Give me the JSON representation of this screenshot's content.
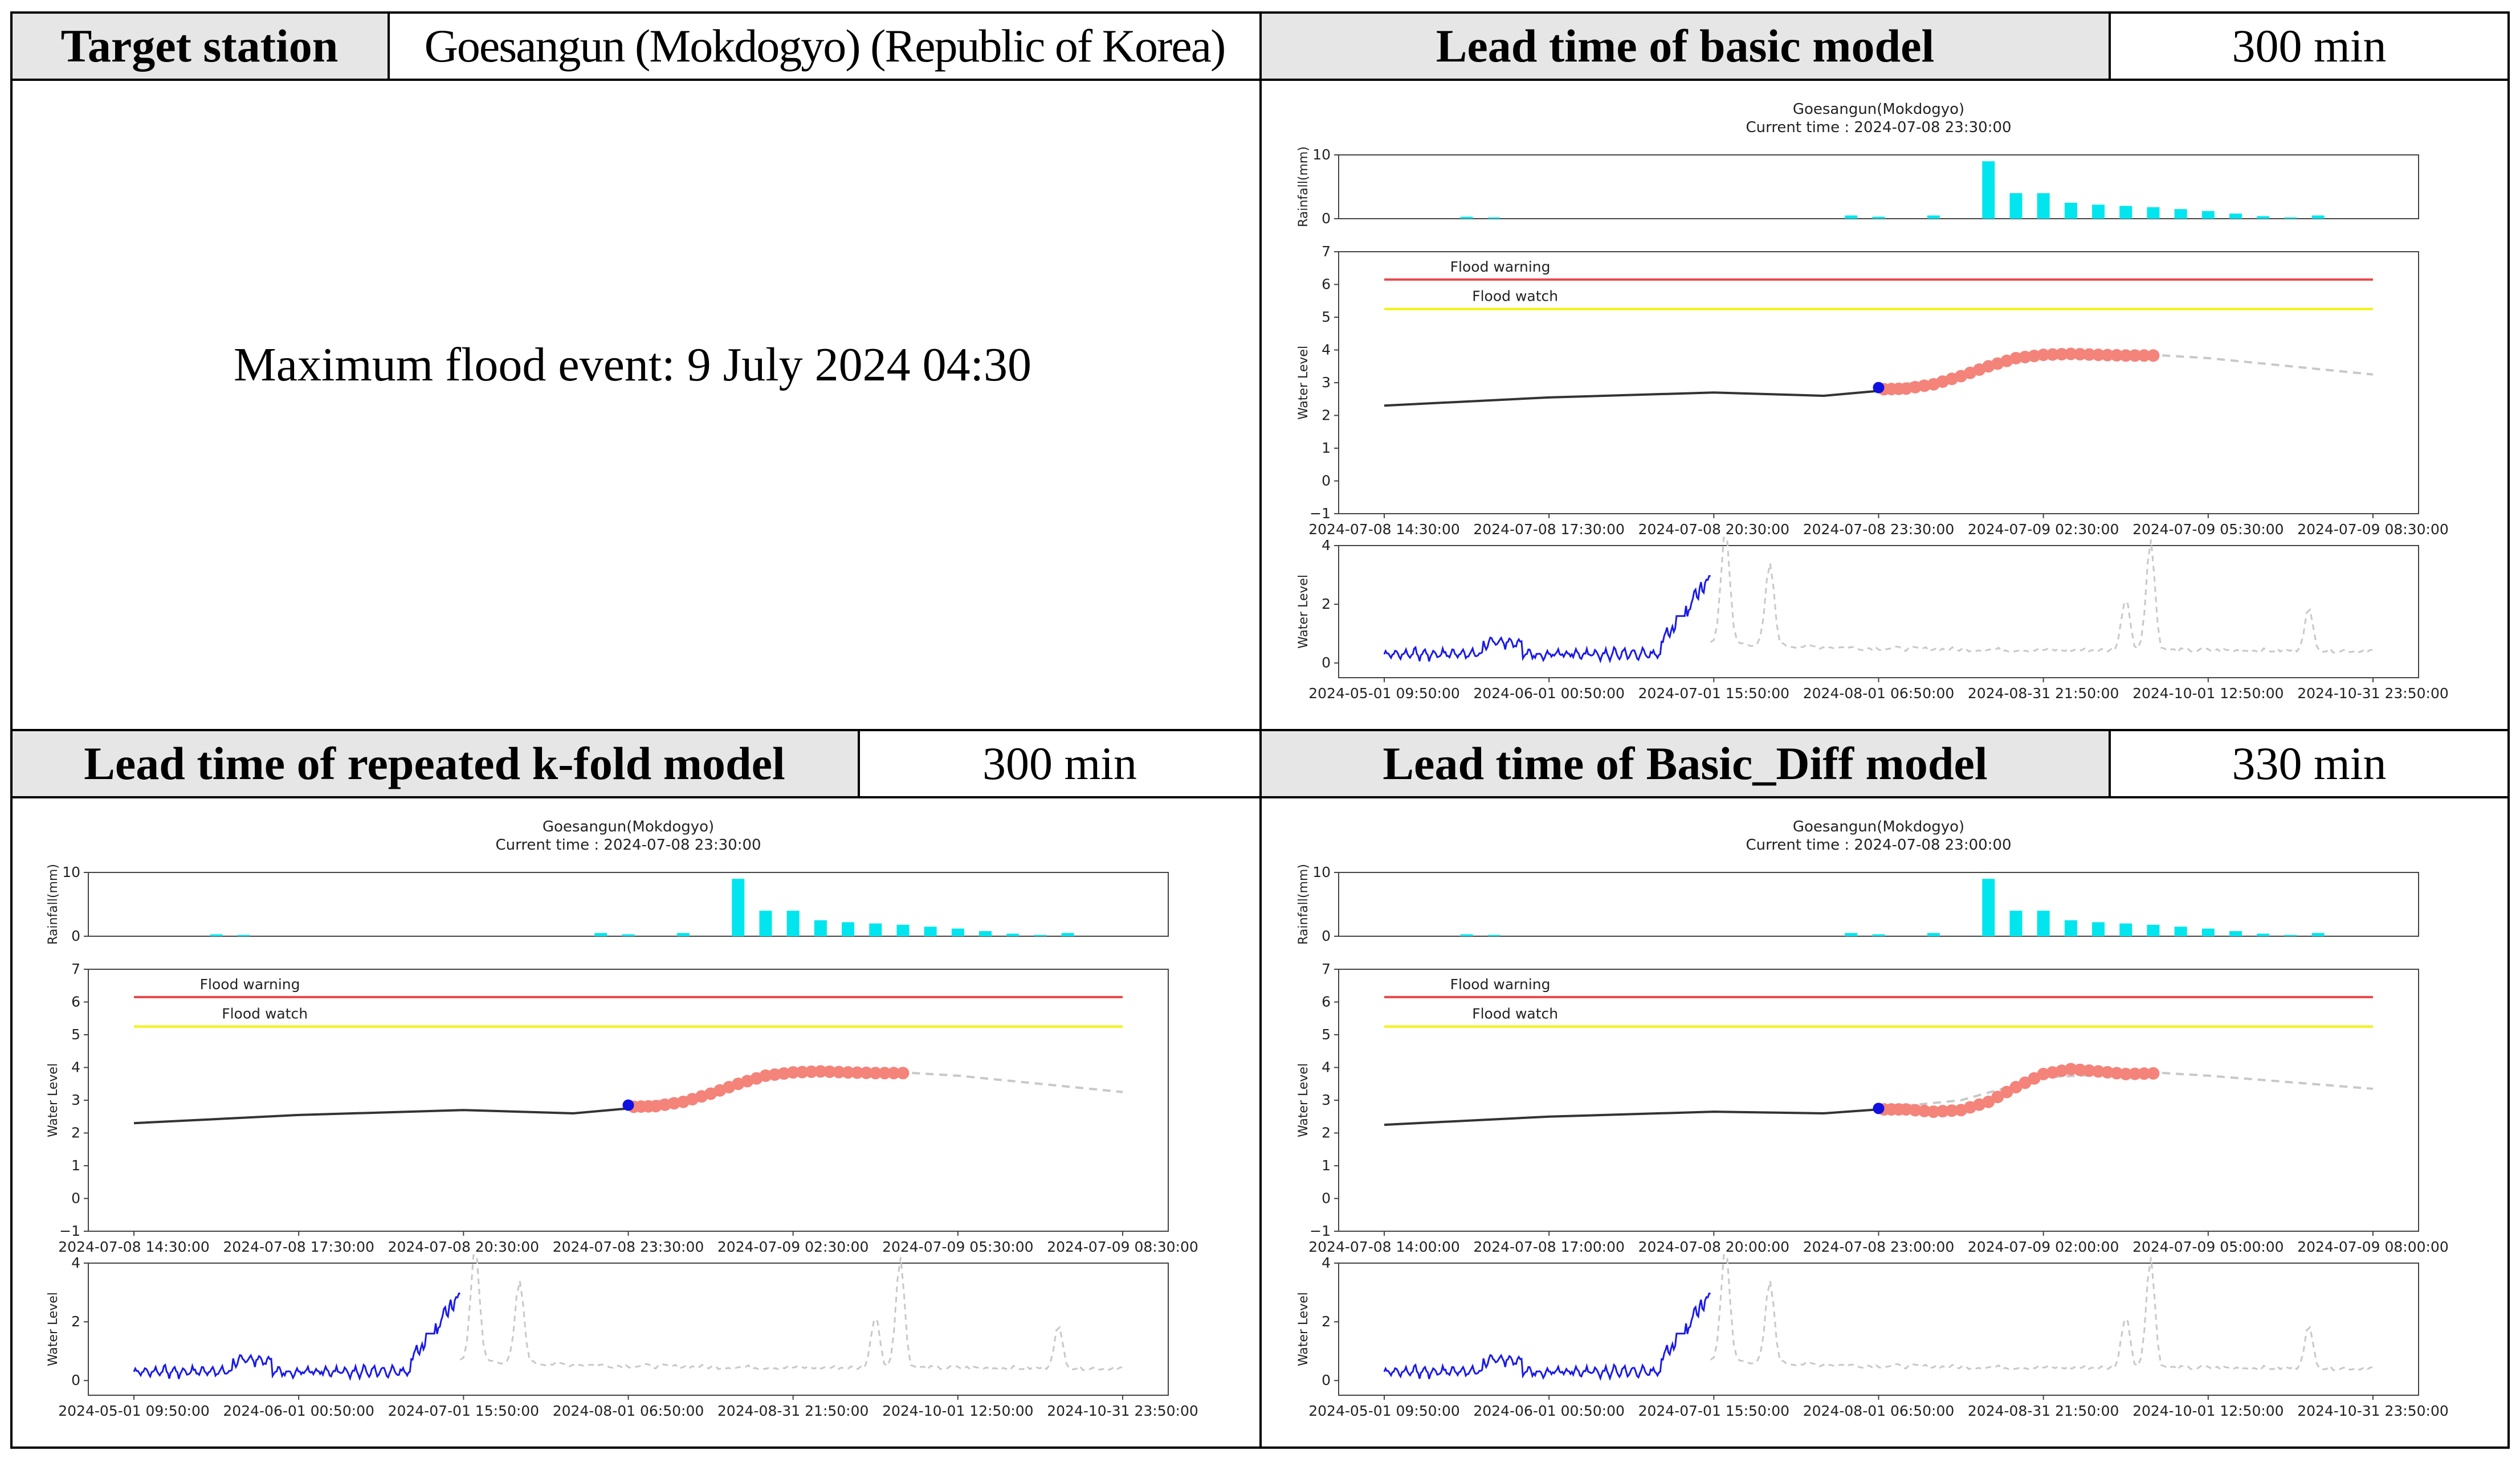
{
  "header": {
    "target_station_label": "Target station",
    "target_station_value": "Goesangun (Mokdogyo) (Republic of Korea)",
    "basic_label": "Lead time of basic model",
    "basic_value": "300 min",
    "kfold_label": "Lead time of repeated k-fold model",
    "kfold_value": "300 min",
    "diff_label": "Lead time of Basic_Diff model",
    "diff_value": "330 min"
  },
  "event": {
    "text": "Maximum flood event: 9 July 2024 04:30"
  },
  "colors": {
    "rain": "#00e5ee",
    "warning": "#e8474a",
    "watch": "#f2f20a",
    "observed": "#333333",
    "forecast": "#f4837a",
    "current": "#1010e0",
    "history": "#1a1ae6",
    "dashed": "#c8c8c8",
    "header_bg": "#e6e6e6"
  },
  "chart_data": [
    {
      "id": "basic",
      "type": "line",
      "station": "Goesangun(Mokdogyo)",
      "current_time": "Current time : 2024-07-08 23:30:00",
      "rainfall": {
        "ylabel": "Rainfall(mm)",
        "ylim": [
          0,
          10
        ],
        "yticks": [
          "0",
          "10"
        ],
        "x": [
          3,
          4,
          17,
          18,
          20,
          22,
          23,
          24,
          25,
          26,
          27,
          28,
          29,
          30,
          31,
          32,
          33,
          34
        ],
        "values": [
          0.3,
          0.2,
          0.5,
          0.3,
          0.5,
          9.0,
          4.0,
          4.0,
          2.5,
          2.2,
          2.0,
          1.8,
          1.5,
          1.2,
          0.8,
          0.4,
          0.2,
          0.5
        ]
      },
      "water_level": {
        "ylabel": "Water Level",
        "ylim": [
          -1,
          7
        ],
        "yticks": [
          "−1",
          "0",
          "1",
          "2",
          "3",
          "4",
          "5",
          "6",
          "7"
        ],
        "xticks": [
          "2024-07-08 14:30:00",
          "2024-07-08 17:30:00",
          "2024-07-08 20:30:00",
          "2024-07-08 23:30:00",
          "2024-07-09 02:30:00",
          "2024-07-09 05:30:00",
          "2024-07-09 08:30:00"
        ],
        "flood_warning": 6.15,
        "flood_watch": 5.25,
        "warning_label": "Flood warning",
        "watch_label": "Flood watch",
        "observed": [
          [
            0,
            2.3
          ],
          [
            6,
            2.55
          ],
          [
            12,
            2.7
          ],
          [
            16,
            2.6
          ],
          [
            18,
            2.75
          ],
          [
            18,
            2.85
          ]
        ],
        "current": [
          18,
          2.85
        ],
        "forecast": [
          [
            18.2,
            2.8
          ],
          [
            19,
            2.82
          ],
          [
            20,
            2.95
          ],
          [
            21,
            3.2
          ],
          [
            22,
            3.5
          ],
          [
            23,
            3.75
          ],
          [
            24,
            3.85
          ],
          [
            25,
            3.88
          ],
          [
            26,
            3.85
          ],
          [
            27,
            3.83
          ],
          [
            28,
            3.83
          ]
        ],
        "observed_future": [
          [
            18,
            2.85
          ],
          [
            21,
            3.2
          ],
          [
            24,
            3.85
          ],
          [
            28,
            3.85
          ],
          [
            30,
            3.75
          ],
          [
            36,
            3.25
          ]
        ]
      },
      "history": {
        "ylabel": "Water Level",
        "ylim": [
          -0.5,
          4
        ],
        "yticks": [
          "0",
          "2",
          "4"
        ],
        "xticks": [
          "2024-05-01 09:50:00",
          "2024-06-01 00:50:00",
          "2024-07-01 15:50:00",
          "2024-08-01 06:50:00",
          "2024-08-31 21:50:00",
          "2024-10-01 12:50:00",
          "2024-10-31 23:50:00"
        ]
      }
    },
    {
      "id": "kfold",
      "type": "line",
      "station": "Goesangun(Mokdogyo)",
      "current_time": "Current time : 2024-07-08 23:30:00",
      "rainfall": {
        "ylabel": "Rainfall(mm)",
        "ylim": [
          0,
          10
        ],
        "yticks": [
          "0",
          "10"
        ],
        "x": [
          3,
          4,
          17,
          18,
          20,
          22,
          23,
          24,
          25,
          26,
          27,
          28,
          29,
          30,
          31,
          32,
          33,
          34
        ],
        "values": [
          0.3,
          0.2,
          0.5,
          0.3,
          0.5,
          9.0,
          4.0,
          4.0,
          2.5,
          2.2,
          2.0,
          1.8,
          1.5,
          1.2,
          0.8,
          0.4,
          0.2,
          0.5
        ]
      },
      "water_level": {
        "ylabel": "Water Level",
        "ylim": [
          -1,
          7
        ],
        "yticks": [
          "−1",
          "0",
          "1",
          "2",
          "3",
          "4",
          "5",
          "6",
          "7"
        ],
        "xticks": [
          "2024-07-08 14:30:00",
          "2024-07-08 17:30:00",
          "2024-07-08 20:30:00",
          "2024-07-08 23:30:00",
          "2024-07-09 02:30:00",
          "2024-07-09 05:30:00",
          "2024-07-09 08:30:00"
        ],
        "flood_warning": 6.15,
        "flood_watch": 5.25,
        "warning_label": "Flood warning",
        "watch_label": "Flood watch",
        "observed": [
          [
            0,
            2.3
          ],
          [
            6,
            2.55
          ],
          [
            12,
            2.7
          ],
          [
            16,
            2.6
          ],
          [
            18,
            2.75
          ],
          [
            18,
            2.85
          ]
        ],
        "current": [
          18,
          2.85
        ],
        "forecast": [
          [
            18.2,
            2.8
          ],
          [
            19,
            2.82
          ],
          [
            20,
            2.95
          ],
          [
            21,
            3.2
          ],
          [
            22,
            3.5
          ],
          [
            23,
            3.75
          ],
          [
            24,
            3.85
          ],
          [
            25,
            3.88
          ],
          [
            26,
            3.85
          ],
          [
            27,
            3.83
          ],
          [
            28,
            3.83
          ]
        ],
        "observed_future": [
          [
            18,
            2.85
          ],
          [
            21,
            3.2
          ],
          [
            24,
            3.85
          ],
          [
            28,
            3.85
          ],
          [
            30,
            3.75
          ],
          [
            36,
            3.25
          ]
        ]
      },
      "history": {
        "ylabel": "Water Level",
        "ylim": [
          -0.5,
          4
        ],
        "yticks": [
          "0",
          "2",
          "4"
        ],
        "xticks": [
          "2024-05-01 09:50:00",
          "2024-06-01 00:50:00",
          "2024-07-01 15:50:00",
          "2024-08-01 06:50:00",
          "2024-08-31 21:50:00",
          "2024-10-01 12:50:00",
          "2024-10-31 23:50:00"
        ]
      }
    },
    {
      "id": "diff",
      "type": "line",
      "station": "Goesangun(Mokdogyo)",
      "current_time": "Current time : 2024-07-08 23:00:00",
      "rainfall": {
        "ylabel": "Rainfall(mm)",
        "ylim": [
          0,
          10
        ],
        "yticks": [
          "0",
          "10"
        ],
        "x": [
          3,
          4,
          17,
          18,
          20,
          22,
          23,
          24,
          25,
          26,
          27,
          28,
          29,
          30,
          31,
          32,
          33,
          34
        ],
        "values": [
          0.3,
          0.2,
          0.5,
          0.3,
          0.5,
          9.0,
          4.0,
          4.0,
          2.5,
          2.2,
          2.0,
          1.8,
          1.5,
          1.2,
          0.8,
          0.4,
          0.2,
          0.5
        ]
      },
      "water_level": {
        "ylabel": "Water Level",
        "ylim": [
          -1,
          7
        ],
        "yticks": [
          "−1",
          "0",
          "1",
          "2",
          "3",
          "4",
          "5",
          "6",
          "7"
        ],
        "xticks": [
          "2024-07-08 14:00:00",
          "2024-07-08 17:00:00",
          "2024-07-08 20:00:00",
          "2024-07-08 23:00:00",
          "2024-07-09 02:00:00",
          "2024-07-09 05:00:00",
          "2024-07-09 08:00:00"
        ],
        "flood_warning": 6.15,
        "flood_watch": 5.25,
        "warning_label": "Flood warning",
        "watch_label": "Flood watch",
        "observed": [
          [
            0,
            2.25
          ],
          [
            6,
            2.5
          ],
          [
            12,
            2.65
          ],
          [
            16,
            2.6
          ],
          [
            18,
            2.72
          ],
          [
            18,
            2.75
          ]
        ],
        "current": [
          18,
          2.75
        ],
        "forecast": [
          [
            18.2,
            2.72
          ],
          [
            19,
            2.72
          ],
          [
            20,
            2.65
          ],
          [
            21,
            2.7
          ],
          [
            22,
            2.95
          ],
          [
            23,
            3.4
          ],
          [
            24,
            3.8
          ],
          [
            25,
            3.95
          ],
          [
            26,
            3.88
          ],
          [
            27,
            3.8
          ],
          [
            28,
            3.82
          ]
        ],
        "observed_future": [
          [
            18,
            2.75
          ],
          [
            21,
            3.0
          ],
          [
            24,
            3.7
          ],
          [
            28,
            3.85
          ],
          [
            30,
            3.75
          ],
          [
            36,
            3.35
          ]
        ]
      },
      "history": {
        "ylabel": "Water Level",
        "ylim": [
          -0.5,
          4
        ],
        "yticks": [
          "0",
          "2",
          "4"
        ],
        "xticks": [
          "2024-05-01 09:50:00",
          "2024-06-01 00:50:00",
          "2024-07-01 15:50:00",
          "2024-08-01 06:50:00",
          "2024-08-31 21:50:00",
          "2024-10-01 12:50:00",
          "2024-10-31 23:50:00"
        ]
      }
    }
  ]
}
